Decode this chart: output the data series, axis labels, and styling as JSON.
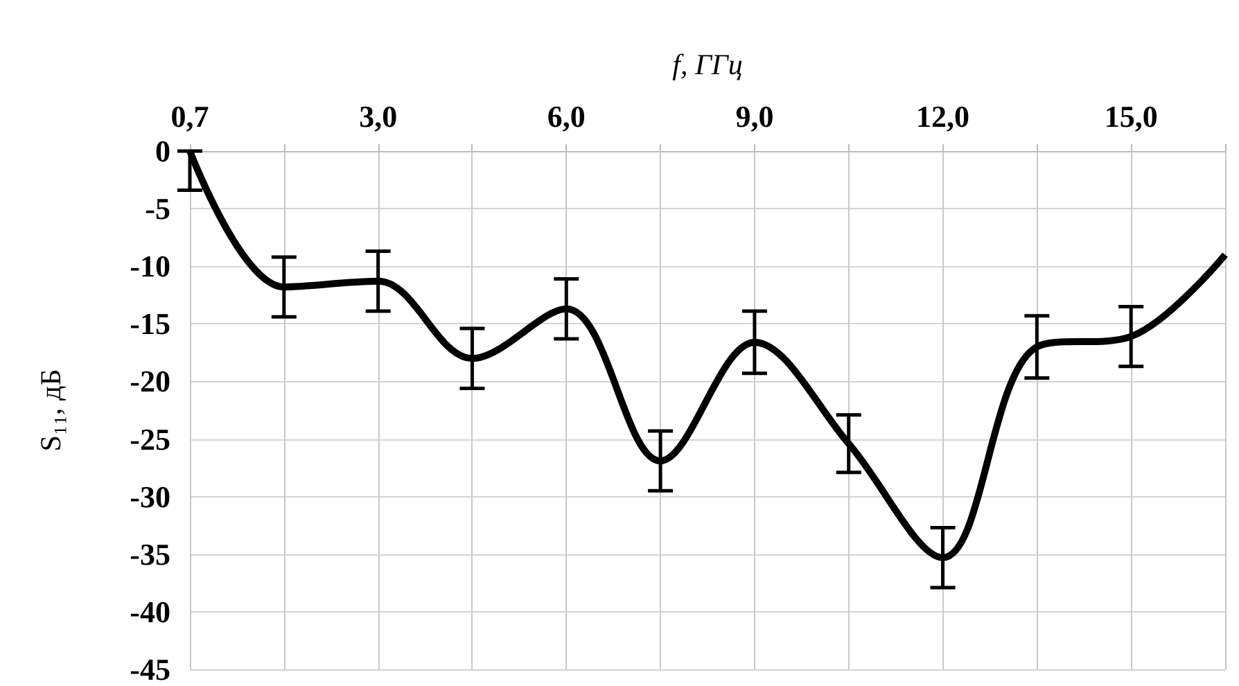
{
  "chart_data": {
    "type": "line",
    "xlabel": "f, ГГц",
    "ylabel": "S₁₁, дБ",
    "categories": [
      "0,7",
      null,
      "3,0",
      null,
      "6,0",
      null,
      "9,0",
      null,
      "12,0",
      null,
      "15,0",
      null
    ],
    "series": [
      {
        "color": "#000000",
        "values": [
          0,
          -11.8,
          -11.3,
          -18,
          -13.7,
          -26.9,
          -16.6,
          -25.4,
          -35.3,
          -17,
          -16.1,
          -9
        ],
        "errors": [
          [
            -3.4,
            0
          ],
          2.6,
          2.6,
          2.6,
          2.6,
          2.6,
          2.7,
          2.5,
          2.6,
          2.7,
          2.6,
          null
        ]
      }
    ],
    "ylim": [
      -45,
      0
    ],
    "yticks": [
      0,
      -5,
      -10,
      -15,
      -20,
      -25,
      -30,
      -35,
      -40,
      -45
    ],
    "grid": true
  }
}
